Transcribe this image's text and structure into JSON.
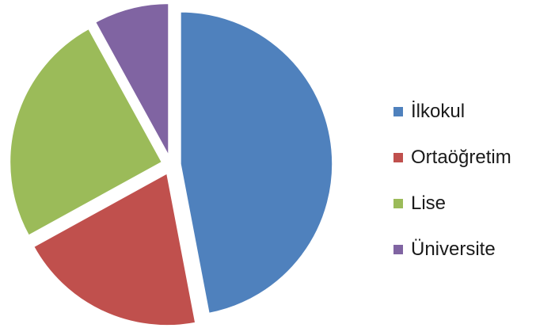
{
  "chart_data": {
    "type": "pie",
    "exploded": true,
    "start_angle_deg": 0,
    "direction": "clockwise",
    "slices": [
      {
        "label": "İlkokul",
        "value": 47,
        "color": "#4f81bd"
      },
      {
        "label": "Ortaöğretim",
        "value": 20,
        "color": "#c0504d"
      },
      {
        "label": "Lise",
        "value": 25,
        "color": "#9bbb59"
      },
      {
        "label": "Üniversite",
        "value": 8,
        "color": "#8064a2"
      }
    ],
    "legend": {
      "position": "right"
    }
  }
}
